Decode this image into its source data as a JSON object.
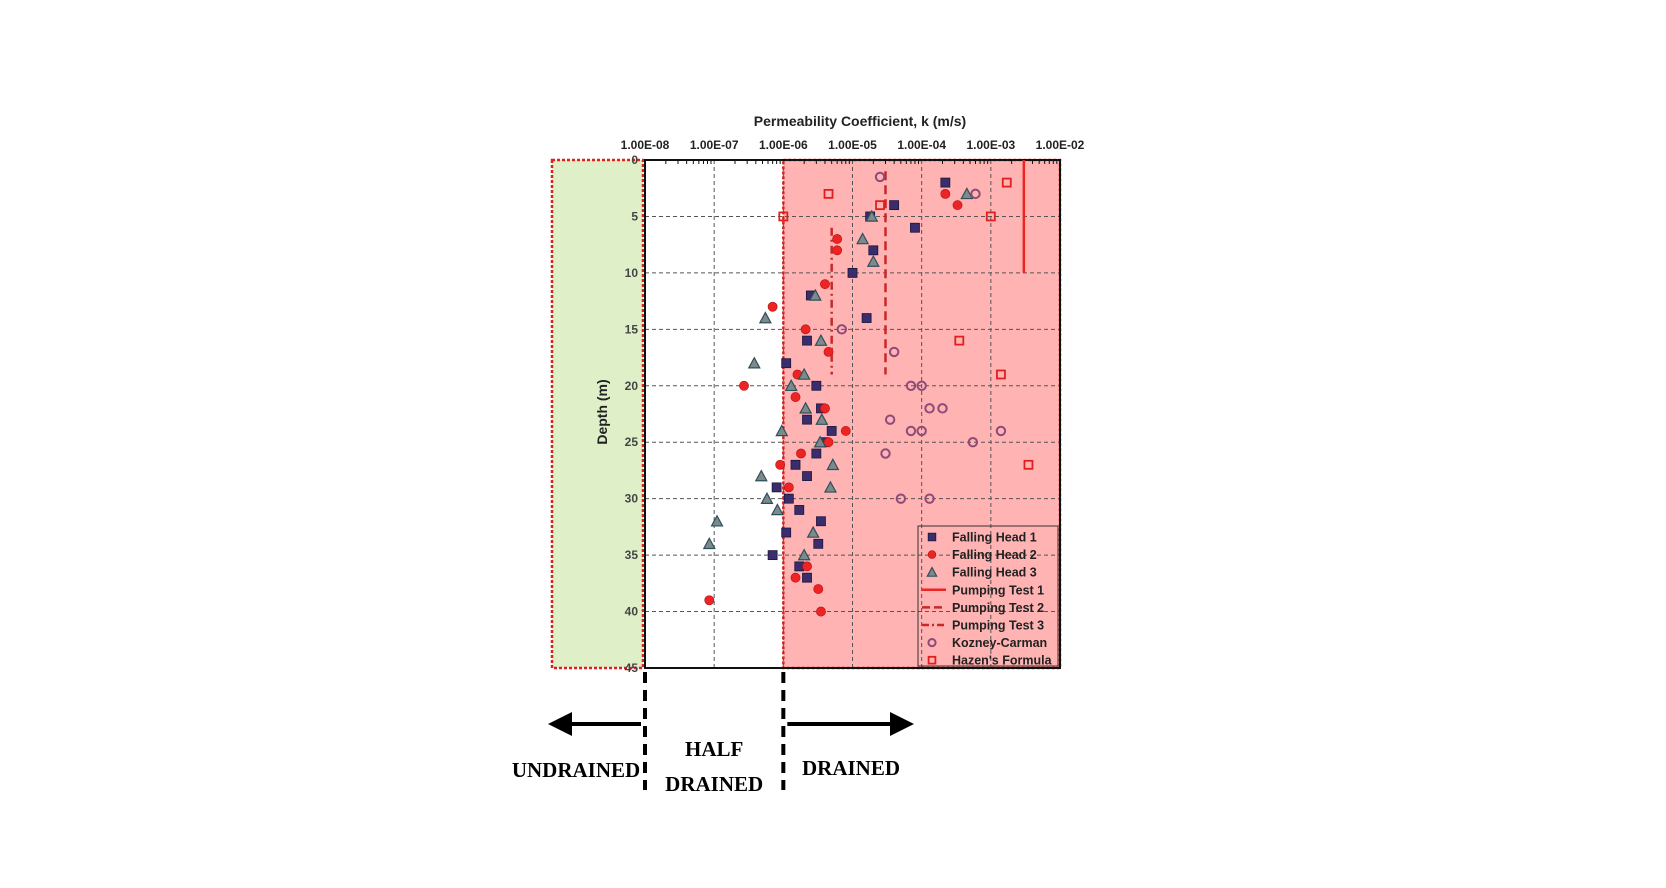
{
  "chart_data": {
    "type": "scatter",
    "title": "",
    "xlabel": "Permeability Coefficient, k (m/s)",
    "ylabel": "Depth (m)",
    "x_scale": "log",
    "x_axis_position": "top",
    "y_inverted": true,
    "xlim": [
      1e-08,
      0.01
    ],
    "ylim": [
      0,
      45
    ],
    "x_tick_values": [
      1e-08,
      1e-07,
      1e-06,
      1e-05,
      0.0001,
      0.001,
      0.01
    ],
    "x_tick_labels": [
      "1.00E-08",
      "1.00E-07",
      "1.00E-06",
      "1.00E-05",
      "1.00E-04",
      "1.00E-03",
      "1.00E-02"
    ],
    "y_ticks": [
      "0",
      "5",
      "10",
      "15",
      "20",
      "25",
      "30",
      "35",
      "40",
      "45"
    ],
    "grid": true,
    "legend_position": "bottom-right",
    "zones": [
      {
        "label": [
          "UNDRAINED"
        ],
        "k_range": [
          null,
          1e-08
        ],
        "color": "#dff0c8",
        "border": "#e0201e"
      },
      {
        "label": [
          "HALF",
          "DRAINED"
        ],
        "k_range": [
          1e-08,
          1e-06
        ],
        "color": "#ffffff"
      },
      {
        "label": [
          "DRAINED"
        ],
        "k_range": [
          1e-06,
          0.01
        ],
        "color": "#ffb3b3",
        "border": "#e0201e"
      }
    ],
    "series": [
      {
        "name": "Falling Head 1",
        "marker": "square",
        "color": "#3b2d6b",
        "points": [
          [
            0.00022,
            2
          ],
          [
            4e-05,
            4
          ],
          [
            1.8e-05,
            5
          ],
          [
            8e-05,
            6
          ],
          [
            2e-05,
            8
          ],
          [
            1e-05,
            10
          ],
          [
            2.5e-06,
            12
          ],
          [
            1.6e-05,
            14
          ],
          [
            2.2e-06,
            16
          ],
          [
            1.1e-06,
            18
          ],
          [
            3e-06,
            20
          ],
          [
            2.2e-06,
            23
          ],
          [
            3.5e-06,
            22
          ],
          [
            4e-06,
            25
          ],
          [
            3e-06,
            26
          ],
          [
            5e-06,
            24
          ],
          [
            1.5e-06,
            27
          ],
          [
            2.2e-06,
            28
          ],
          [
            8e-07,
            29
          ],
          [
            1.2e-06,
            30
          ],
          [
            1.7e-06,
            31
          ],
          [
            3.5e-06,
            32
          ],
          [
            1.1e-06,
            33
          ],
          [
            3.2e-06,
            34
          ],
          [
            7e-07,
            35
          ],
          [
            1.7e-06,
            36
          ],
          [
            2.2e-06,
            37
          ]
        ]
      },
      {
        "name": "Falling Head 2",
        "marker": "circle",
        "color": "#ee2424",
        "points": [
          [
            0.00022,
            3
          ],
          [
            0.00033,
            4
          ],
          [
            6e-06,
            7
          ],
          [
            6e-06,
            8
          ],
          [
            4e-06,
            11
          ],
          [
            7e-07,
            13
          ],
          [
            2.1e-06,
            15
          ],
          [
            4.5e-06,
            17
          ],
          [
            1.6e-06,
            19
          ],
          [
            2.7e-07,
            20
          ],
          [
            1.5e-06,
            21
          ],
          [
            4e-06,
            22
          ],
          [
            8e-06,
            24
          ],
          [
            4.5e-06,
            25
          ],
          [
            1.8e-06,
            26
          ],
          [
            9e-07,
            27
          ],
          [
            1.2e-06,
            29
          ],
          [
            2.2e-06,
            36
          ],
          [
            1.5e-06,
            37
          ],
          [
            3.2e-06,
            38
          ],
          [
            8.5e-08,
            39
          ],
          [
            3.5e-06,
            40
          ]
        ]
      },
      {
        "name": "Falling Head 3",
        "marker": "triangle",
        "color": "#7c8a8c",
        "edge": "#2f4f5a",
        "points": [
          [
            0.00045,
            3
          ],
          [
            1.9e-05,
            5
          ],
          [
            1.4e-05,
            7
          ],
          [
            2e-05,
            9
          ],
          [
            2.9e-06,
            12
          ],
          [
            5.5e-07,
            14
          ],
          [
            3.5e-06,
            16
          ],
          [
            3.8e-07,
            18
          ],
          [
            2e-06,
            19
          ],
          [
            1.3e-06,
            20
          ],
          [
            2.1e-06,
            22
          ],
          [
            3.6e-06,
            23
          ],
          [
            9.5e-07,
            24
          ],
          [
            3.4e-06,
            25
          ],
          [
            5.2e-06,
            27
          ],
          [
            4.8e-07,
            28
          ],
          [
            4.8e-06,
            29
          ],
          [
            5.8e-07,
            30
          ],
          [
            8.2e-07,
            31
          ],
          [
            1.1e-07,
            32
          ],
          [
            2.7e-06,
            33
          ],
          [
            8.5e-08,
            34
          ],
          [
            2e-06,
            35
          ]
        ]
      },
      {
        "name": "Pumping Test 1",
        "line": "solid",
        "color": "#ee2424",
        "points": [
          [
            0.003,
            0
          ],
          [
            0.003,
            10
          ]
        ]
      },
      {
        "name": "Pumping Test 2",
        "line": "dashed",
        "color": "#c9282a",
        "points": [
          [
            3e-05,
            1
          ],
          [
            3e-05,
            19
          ]
        ]
      },
      {
        "name": "Pumping Test 3",
        "line": "dash-dot",
        "color": "#c9282a",
        "points": [
          [
            5e-06,
            6
          ],
          [
            5e-06,
            19
          ]
        ]
      },
      {
        "name": "Kozney-Carman",
        "marker": "open-circle",
        "color": "#8e4b7a",
        "points": [
          [
            2.5e-05,
            1.5
          ],
          [
            0.0006,
            3
          ],
          [
            7e-06,
            15
          ],
          [
            4e-05,
            17
          ],
          [
            7e-05,
            20
          ],
          [
            0.0001,
            20
          ],
          [
            0.00013,
            22
          ],
          [
            0.0002,
            22
          ],
          [
            3.5e-05,
            23
          ],
          [
            7e-05,
            24
          ],
          [
            0.0001,
            24
          ],
          [
            0.00055,
            25
          ],
          [
            0.0014,
            24
          ],
          [
            3e-05,
            26
          ],
          [
            5e-05,
            30
          ],
          [
            0.00013,
            30
          ]
        ]
      },
      {
        "name": "Hazen's Formula",
        "marker": "open-square",
        "color": "#e0201e",
        "points": [
          [
            0.0017,
            2
          ],
          [
            4.5e-06,
            3
          ],
          [
            2.5e-05,
            4
          ],
          [
            1e-06,
            5
          ],
          [
            0.001,
            5
          ],
          [
            0.00035,
            16
          ],
          [
            0.0014,
            19
          ],
          [
            0.0035,
            27
          ]
        ]
      }
    ]
  }
}
